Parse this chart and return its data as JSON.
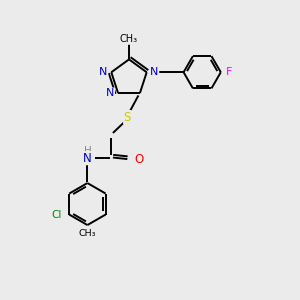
{
  "bg_color": "#ebebeb",
  "atom_colors": {
    "N": "#0000cc",
    "O": "#ff0000",
    "S": "#cccc00",
    "Cl": "#008800",
    "F": "#ff00ff",
    "C": "#000000",
    "H": "#888888"
  },
  "lw": 1.4
}
